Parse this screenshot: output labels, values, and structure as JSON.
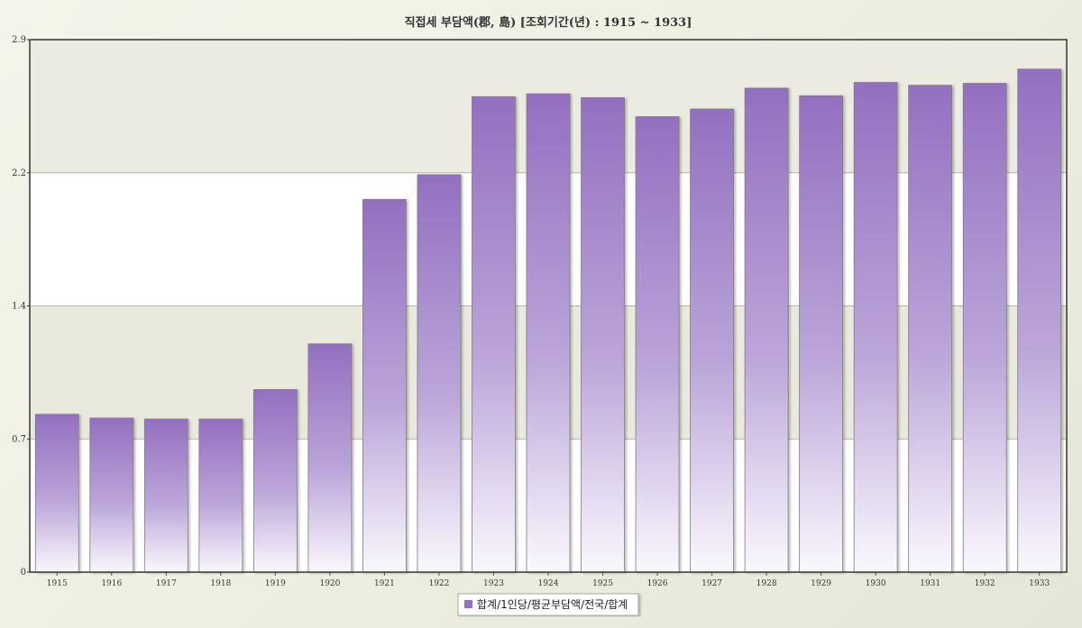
{
  "chart_data": {
    "type": "bar",
    "title": "직접세 부담액(郡, 島) [조회기간(년) : 1915 ~ 1933]",
    "xlabel": "",
    "ylabel": "",
    "categories": [
      "1915",
      "1916",
      "1917",
      "1918",
      "1919",
      "1920",
      "1921",
      "1922",
      "1923",
      "1924",
      "1925",
      "1926",
      "1927",
      "1928",
      "1929",
      "1930",
      "1931",
      "1932",
      "1933"
    ],
    "series": [
      {
        "name": "합계/1인당/평균부담액/전국/합계",
        "values": [
          0.83,
          0.81,
          0.805,
          0.805,
          0.96,
          1.2,
          1.96,
          2.09,
          2.5,
          2.515,
          2.495,
          2.395,
          2.435,
          2.545,
          2.505,
          2.575,
          2.56,
          2.57,
          2.645
        ],
        "color": "#9370c0"
      }
    ],
    "yticks": [
      "0",
      "0.7",
      "1.4",
      "2.2",
      "2.9"
    ],
    "ylim": [
      0,
      2.8
    ],
    "grid": true,
    "legend_position": "bottom-center"
  }
}
